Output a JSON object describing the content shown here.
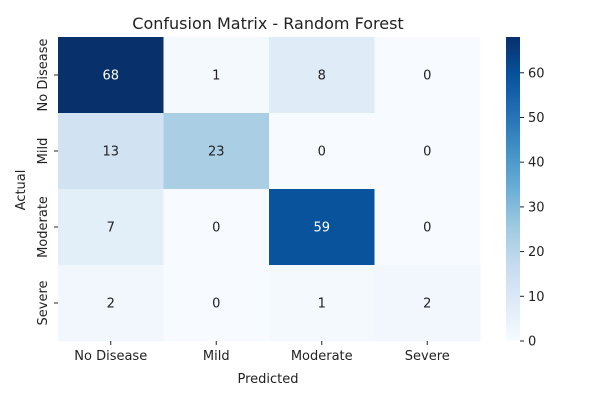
{
  "chart_data": {
    "type": "heatmap",
    "title": "Confusion Matrix - Random Forest",
    "xlabel": "Predicted",
    "ylabel": "Actual",
    "x_categories": [
      "No Disease",
      "Mild",
      "Moderate",
      "Severe"
    ],
    "y_categories": [
      "No Disease",
      "Mild",
      "Moderate",
      "Severe"
    ],
    "matrix": [
      [
        68,
        1,
        8,
        0
      ],
      [
        13,
        23,
        0,
        0
      ],
      [
        7,
        0,
        59,
        0
      ],
      [
        2,
        0,
        1,
        2
      ]
    ],
    "colormap": "Blues",
    "color_range": [
      0,
      68
    ],
    "colorbar_ticks": [
      0,
      10,
      20,
      30,
      40,
      50,
      60
    ],
    "colors": {
      "low": "#f7fbff",
      "high": "#08306b"
    }
  }
}
